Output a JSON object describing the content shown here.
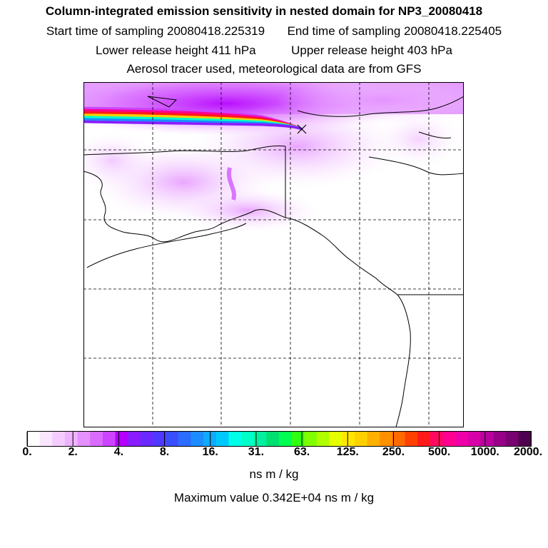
{
  "header": {
    "title": "Column-integrated emission sensitivity in nested domain for NP3_20080418",
    "start_label": "Start time of sampling 20080418.225319",
    "end_label": "End time of sampling 20080418.225405",
    "lower_label": "Lower release height  411 hPa",
    "upper_label": "Upper release height  403 hPa",
    "tracer_note": "Aerosol tracer used, meteorological data are from GFS"
  },
  "colorbar": {
    "tick_labels": [
      "0.",
      "2.",
      "4.",
      "8.",
      "16.",
      "31.",
      "63.",
      "125.",
      "250.",
      "500.",
      "1000.",
      "2000."
    ],
    "colors": [
      "#ffffff",
      "#fbe6ff",
      "#f5ccff",
      "#eeb3ff",
      "#e490ff",
      "#d96bff",
      "#cc44ff",
      "#b400ff",
      "#8a1cff",
      "#6a2aff",
      "#4f38ff",
      "#3a4dff",
      "#2c6cff",
      "#1c8cff",
      "#10aaff",
      "#00c8ff",
      "#00ffe8",
      "#00ffc8",
      "#00f0a0",
      "#00e070",
      "#00ff50",
      "#30ff10",
      "#80ff00",
      "#b0ff00",
      "#e6ff00",
      "#ffe600",
      "#ffd000",
      "#ffb000",
      "#ff9000",
      "#ff6a00",
      "#ff4000",
      "#ff1a1a",
      "#ff0a60",
      "#ff0090",
      "#f000a8",
      "#d800a8",
      "#b8009c",
      "#980088",
      "#780070",
      "#500050"
    ],
    "units": "ns m / kg",
    "max_text": "Maximum value  0.342E+04 ns m / kg"
  },
  "map": {
    "plume_colors": [
      "#cc44ff",
      "#ff0090",
      "#ff1a1a",
      "#ffd000",
      "#00ffc8",
      "#1c8cff",
      "#8a1cff"
    ],
    "grid": true
  }
}
